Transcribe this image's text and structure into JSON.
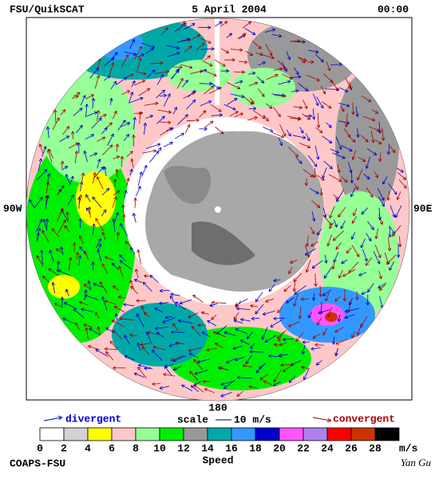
{
  "header": {
    "left": "FSU/QuikSCAT",
    "center": "5 April 2004",
    "right": "00:00"
  },
  "map": {
    "left_label": "90W",
    "right_label": "90E",
    "bottom_label": "180"
  },
  "legend": {
    "divergent": "divergent",
    "scale": "scale",
    "scale_value": "10 m/s",
    "convergent": "convergent",
    "divergent_color": "#0000cc",
    "convergent_color": "#aa0000"
  },
  "colorbar": {
    "ticks": [
      0,
      2,
      4,
      6,
      8,
      10,
      12,
      14,
      16,
      18,
      20,
      22,
      24,
      26,
      28
    ],
    "unit": "m/s",
    "title": "Speed",
    "colors": [
      "#ffffff",
      "#d3d3d3",
      "#ffff00",
      "#ffc8c8",
      "#96ff96",
      "#00ee00",
      "#999999",
      "#00a8a8",
      "#3399ff",
      "#0000cc",
      "#ff55ff",
      "#b080f0",
      "#ff0000",
      "#cc3300",
      "#000000"
    ]
  },
  "footer": {
    "left": "COAPS-FSU",
    "right": "Yan Gu"
  }
}
